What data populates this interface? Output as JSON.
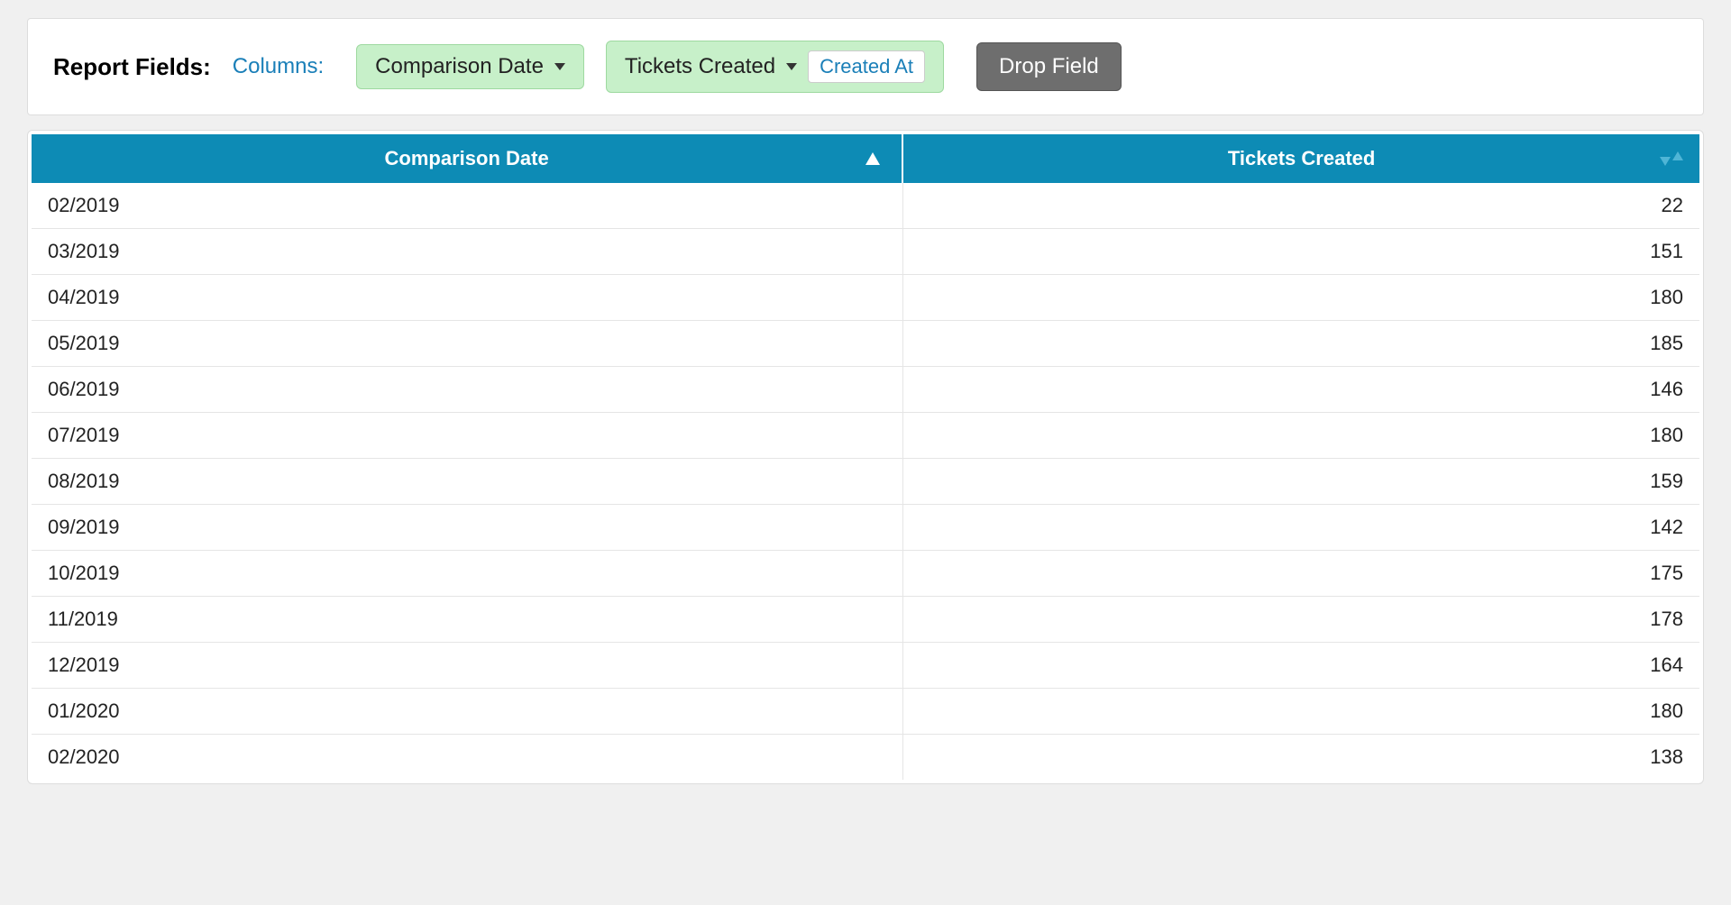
{
  "toolbar": {
    "report_fields_label": "Report Fields:",
    "columns_label": "Columns:",
    "field1": {
      "label": "Comparison Date"
    },
    "field2": {
      "label": "Tickets Created",
      "sub_label": "Created At"
    },
    "drop_field_label": "Drop Field"
  },
  "table": {
    "columns": [
      {
        "label": "Comparison Date",
        "align": "left",
        "sort": "asc"
      },
      {
        "label": "Tickets Created",
        "align": "right",
        "sort": "none"
      }
    ],
    "rows": [
      {
        "date": "02/2019",
        "value": "22"
      },
      {
        "date": "03/2019",
        "value": "151"
      },
      {
        "date": "04/2019",
        "value": "180"
      },
      {
        "date": "05/2019",
        "value": "185"
      },
      {
        "date": "06/2019",
        "value": "146"
      },
      {
        "date": "07/2019",
        "value": "180"
      },
      {
        "date": "08/2019",
        "value": "159"
      },
      {
        "date": "09/2019",
        "value": "142"
      },
      {
        "date": "10/2019",
        "value": "175"
      },
      {
        "date": "11/2019",
        "value": "178"
      },
      {
        "date": "12/2019",
        "value": "164"
      },
      {
        "date": "01/2020",
        "value": "180"
      },
      {
        "date": "02/2020",
        "value": "138"
      }
    ]
  },
  "colors": {
    "header_bg": "#0d8bb5",
    "header_text": "#ffffff",
    "chip_bg": "#c7f0c9",
    "chip_border": "#9ed9a0",
    "link_text": "#1a7fb8",
    "drop_btn_bg": "#6e6e6e",
    "page_bg": "#f0f0f0",
    "row_border": "#e5e5e5",
    "sort_inactive": "#4fb5d6"
  }
}
